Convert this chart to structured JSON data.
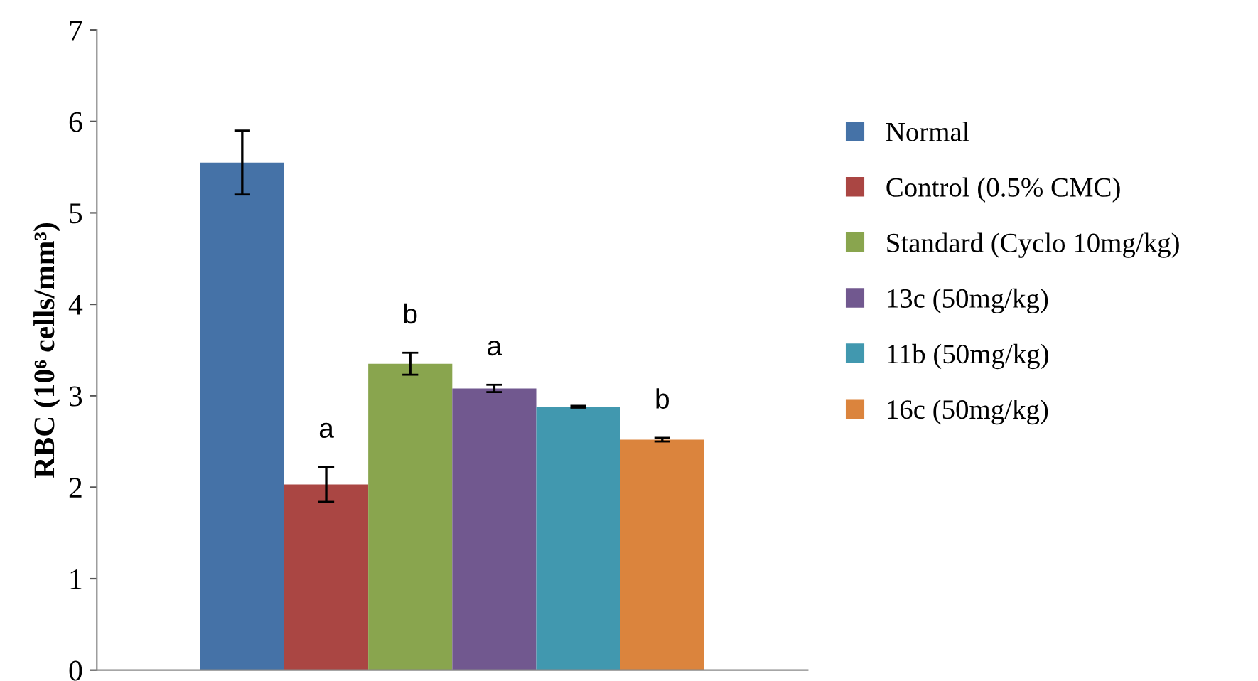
{
  "chart_data": {
    "type": "bar",
    "ylabel": "RBC (10⁶ cells/mm³)",
    "categories": [
      null
    ],
    "series": [
      {
        "name": "Normal",
        "color": "#4572a7",
        "values": [
          5.55
        ],
        "errors": [
          0.35
        ]
      },
      {
        "name": "Control (0.5% CMC)",
        "color": "#aa4643",
        "values": [
          2.03
        ],
        "errors": [
          0.19
        ],
        "value_labels": [
          "a"
        ]
      },
      {
        "name": "Standard (Cyclo 10mg/kg)",
        "color": "#89a54e",
        "values": [
          3.35
        ],
        "errors": [
          0.12
        ],
        "value_labels": [
          "b"
        ]
      },
      {
        "name": "13c (50mg/kg)",
        "color": "#71588f",
        "values": [
          3.08
        ],
        "errors": [
          0.04
        ],
        "value_labels": [
          "a"
        ]
      },
      {
        "name": "11b (50mg/kg)",
        "color": "#4198af",
        "values": [
          2.88
        ],
        "errors": [
          0.01
        ]
      },
      {
        "name": "16c (50mg/kg)",
        "color": "#db843d",
        "values": [
          2.52
        ],
        "errors": [
          0.02
        ],
        "value_labels": [
          "b"
        ]
      }
    ],
    "ylim": [
      0,
      7
    ],
    "yticks": [
      0,
      1,
      2,
      3,
      4,
      5,
      6,
      7
    ],
    "grid": false,
    "legend": "right"
  }
}
